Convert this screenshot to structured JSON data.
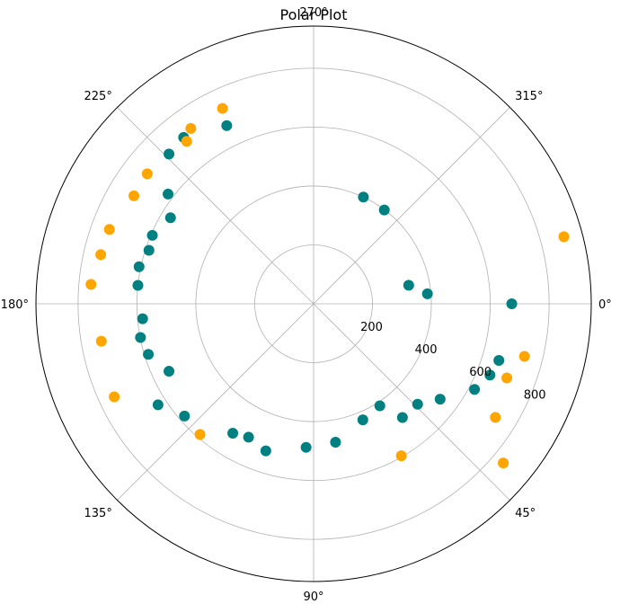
{
  "chart_data": {
    "type": "scatter",
    "projection": "polar",
    "title": "Polar Plot",
    "theta_direction": "clockwise",
    "theta_zero_location": "right",
    "theta_ticks": [
      {
        "deg": 0,
        "label": "0°"
      },
      {
        "deg": 45,
        "label": "45°"
      },
      {
        "deg": 90,
        "label": "90°"
      },
      {
        "deg": 135,
        "label": "135°"
      },
      {
        "deg": 180,
        "label": "180°"
      },
      {
        "deg": 225,
        "label": "225°"
      },
      {
        "deg": 270,
        "label": "270°"
      },
      {
        "deg": 315,
        "label": "315°"
      }
    ],
    "r_ticks": [
      {
        "value": 200,
        "label": "200"
      },
      {
        "value": 400,
        "label": "400"
      },
      {
        "value": 600,
        "label": "600"
      },
      {
        "value": 800,
        "label": "800"
      }
    ],
    "rlim": [
      0,
      943
    ],
    "grid": true,
    "series": [
      {
        "color": "#008080",
        "points": [
          [
            349,
            329
          ],
          [
            295,
            400
          ],
          [
            307,
            399
          ],
          [
            355,
            388
          ],
          [
            0,
            673
          ],
          [
            17,
            658
          ],
          [
            22,
            646
          ],
          [
            28,
            619
          ],
          [
            37,
            538
          ],
          [
            44,
            491
          ],
          [
            52,
            490
          ],
          [
            57,
            413
          ],
          [
            67,
            428
          ],
          [
            81,
            476
          ],
          [
            93,
            488
          ],
          [
            108,
            525
          ],
          [
            116,
            504
          ],
          [
            122,
            518
          ],
          [
            139,
            581
          ],
          [
            147,
            630
          ],
          [
            155,
            542
          ],
          [
            163,
            587
          ],
          [
            169,
            599
          ],
          [
            175,
            583
          ],
          [
            186,
            600
          ],
          [
            192,
            606
          ],
          [
            198,
            588
          ],
          [
            203,
            595
          ],
          [
            211,
            567
          ],
          [
            217,
            619
          ],
          [
            226,
            707
          ],
          [
            232,
            717
          ],
          [
            244,
            673
          ]
        ]
      },
      {
        "color": "#ffa500",
        "points": [
          [
            345,
            880
          ],
          [
            14,
            738
          ],
          [
            21,
            703
          ],
          [
            32,
            728
          ],
          [
            40,
            841
          ],
          [
            60,
            596
          ],
          [
            131,
            588
          ],
          [
            155,
            747
          ],
          [
            170,
            732
          ],
          [
            185,
            759
          ],
          [
            193,
            742
          ],
          [
            200,
            738
          ],
          [
            211,
            712
          ],
          [
            218,
            717
          ],
          [
            232,
            700
          ],
          [
            235,
            727
          ],
          [
            245,
            732
          ]
        ]
      }
    ]
  }
}
